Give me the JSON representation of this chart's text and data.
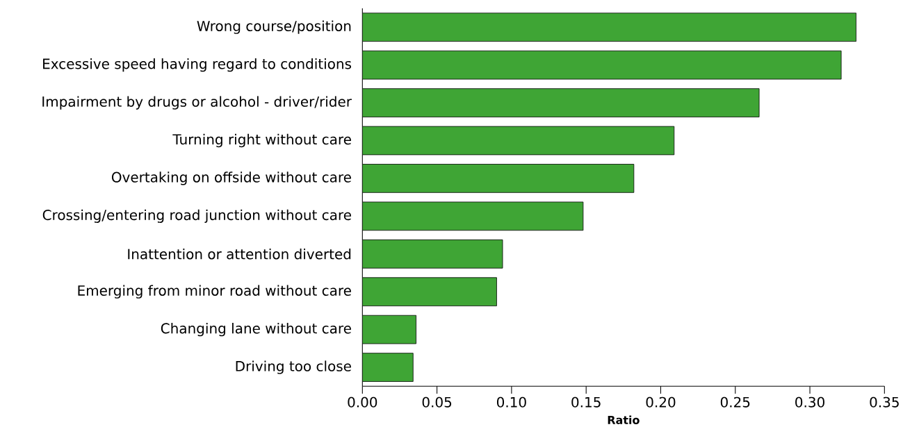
{
  "chart_data": {
    "type": "bar",
    "orientation": "horizontal",
    "xlabel": "Ratio",
    "color": "#3fa535",
    "categories": [
      "Wrong course/position",
      "Excessive speed having regard to conditions",
      "Impairment by drugs or alcohol - driver/rider",
      "Turning right without care",
      "Overtaking on offside without care",
      "Crossing/entering road junction without care",
      "Inattention or attention diverted",
      "Emerging from minor road without care",
      "Changing lane without care",
      "Driving too close"
    ],
    "values": [
      0.331,
      0.321,
      0.266,
      0.209,
      0.182,
      0.148,
      0.094,
      0.09,
      0.036,
      0.034
    ],
    "xlim": [
      0,
      0.35
    ],
    "xticks": [
      {
        "value": 0,
        "label": "0.00"
      },
      {
        "value": 0.05,
        "label": "0.05"
      },
      {
        "value": 0.1,
        "label": "0.10"
      },
      {
        "value": 0.15,
        "label": "0.15"
      },
      {
        "value": 0.2,
        "label": "0.20"
      },
      {
        "value": 0.25,
        "label": "0.25"
      },
      {
        "value": 0.3,
        "label": "0.30"
      },
      {
        "value": 0.35,
        "label": "0.35"
      }
    ]
  }
}
